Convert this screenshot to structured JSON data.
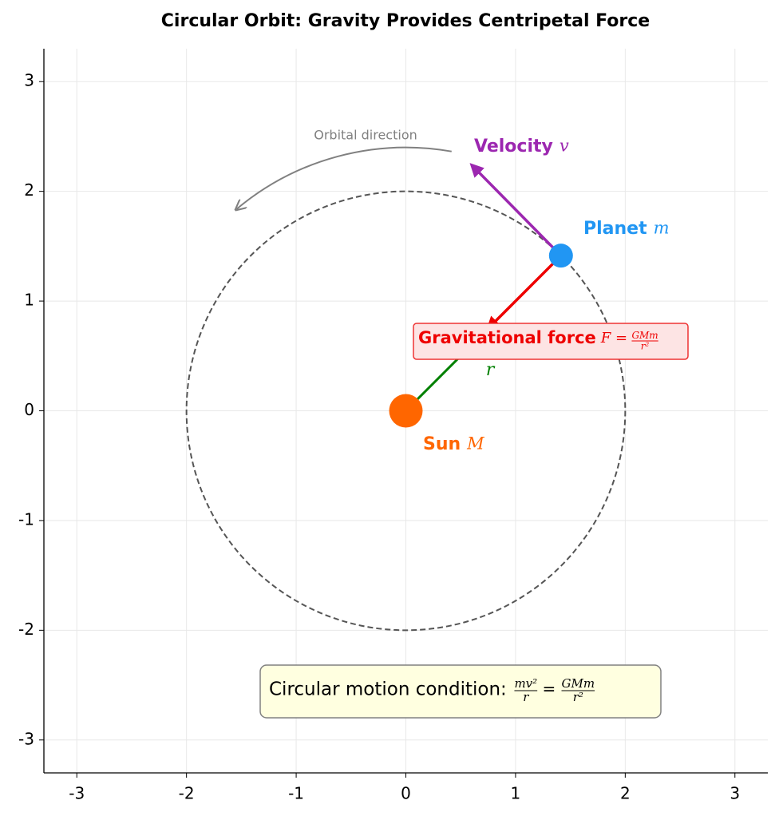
{
  "chart_data": {
    "type": "orbit",
    "title": "Circular Orbit: Gravity Provides Centripetal Force",
    "xlim": [
      -3.3,
      3.3
    ],
    "ylim": [
      -3.3,
      3.3
    ],
    "xticks": [
      -3,
      -2,
      -1,
      0,
      1,
      2,
      3
    ],
    "yticks": [
      -3,
      -2,
      -1,
      0,
      1,
      2,
      3
    ],
    "grid": true,
    "orbit": {
      "x": 0,
      "y": 0,
      "radius": 2,
      "color": "#555555"
    },
    "sun": {
      "x": 0,
      "y": 0,
      "color": "#ff6600",
      "label": "Sun",
      "symbol": "M"
    },
    "planet": {
      "x": 1.414,
      "y": 1.414,
      "color": "#2196f3",
      "label": "Planet",
      "symbol": "m"
    },
    "velocity": {
      "x": 0.6,
      "y": 2.24,
      "color": "#9c27b0",
      "label": "Velocity",
      "symbol": "v"
    },
    "force": {
      "x": 0.75,
      "y": 0.75,
      "color": "#ee0000",
      "label": "Gravitational force",
      "lhs": "F =",
      "num": "GMm",
      "den": "r²"
    },
    "radius_line": {
      "color": "#008000",
      "symbol": "r"
    },
    "direction": {
      "label": "Orbital direction",
      "radius": 2.4,
      "angles": [
        80,
        130
      ],
      "color": "#808080"
    },
    "condition": {
      "text": "Circular motion condition:",
      "lhs_num": "mv²",
      "lhs_den": "r",
      "eq": "=",
      "rhs_num": "GMm",
      "rhs_den": "r²"
    }
  }
}
